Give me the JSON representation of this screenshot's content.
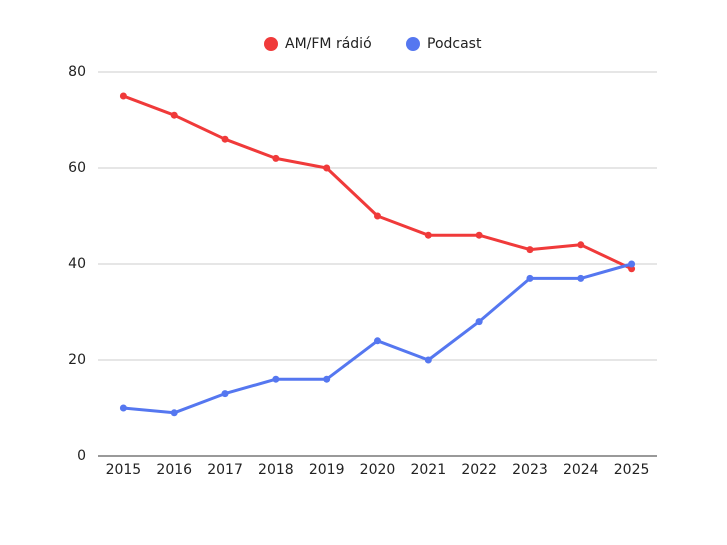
{
  "chart_data": {
    "type": "line",
    "categories": [
      "2015",
      "2016",
      "2017",
      "2018",
      "2019",
      "2020",
      "2021",
      "2022",
      "2023",
      "2024",
      "2025"
    ],
    "series": [
      {
        "name": "AM/FM rádió",
        "color": "#f03a3a",
        "values": [
          75,
          71,
          66,
          62,
          60,
          50,
          46,
          46,
          43,
          44,
          39
        ]
      },
      {
        "name": "Podcast",
        "color": "#5577f0",
        "values": [
          10,
          9,
          13,
          16,
          16,
          24,
          20,
          28,
          37,
          37,
          40
        ]
      }
    ],
    "ylim": [
      0,
      80
    ],
    "yticks": [
      0,
      20,
      40,
      60,
      80
    ],
    "grid": true,
    "legend": "top"
  }
}
